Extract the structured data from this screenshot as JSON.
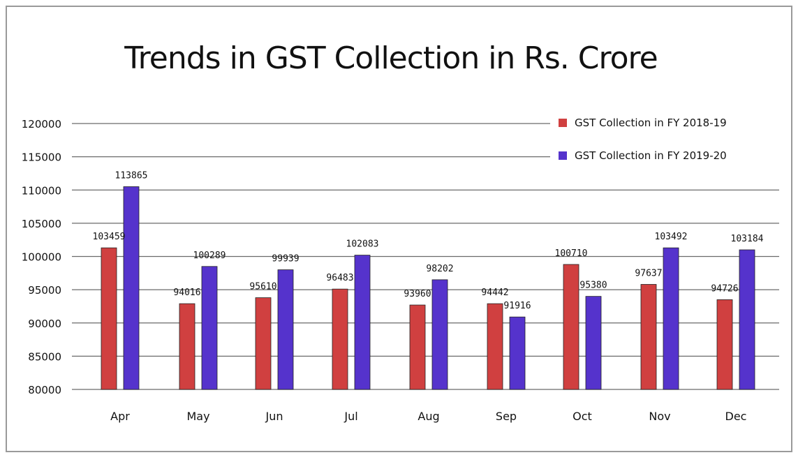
{
  "chart_data": {
    "type": "bar",
    "title": "Trends in GST Collection in Rs. Crore",
    "categories": [
      "Apr",
      "May",
      "Jun",
      "Jul",
      "Aug",
      "Sep",
      "Oct",
      "Nov",
      "Dec"
    ],
    "series": [
      {
        "name": "GST Collection in FY 2018-19",
        "color": "#d04040",
        "values": [
          103459,
          94016,
          95610,
          96483,
          93960,
          94442,
          100710,
          97637,
          94726
        ]
      },
      {
        "name": "GST Collection in FY 2019-20",
        "color": "#5533cc",
        "values": [
          113865,
          100289,
          99939,
          102083,
          98202,
          91916,
          95380,
          103492,
          103184
        ]
      }
    ],
    "bar_heights_shown": [
      [
        101300,
        92900,
        93800,
        95100,
        92700,
        92900,
        98800,
        95800,
        93500
      ],
      [
        110500,
        98500,
        98000,
        100200,
        96500,
        90900,
        94000,
        101300,
        101000
      ]
    ],
    "y_ticks": [
      80000,
      85000,
      90000,
      95000,
      100000,
      105000,
      110000,
      115000,
      120000
    ],
    "ylim": [
      80000,
      120000
    ],
    "grid": true,
    "legend_position": "top-right"
  }
}
